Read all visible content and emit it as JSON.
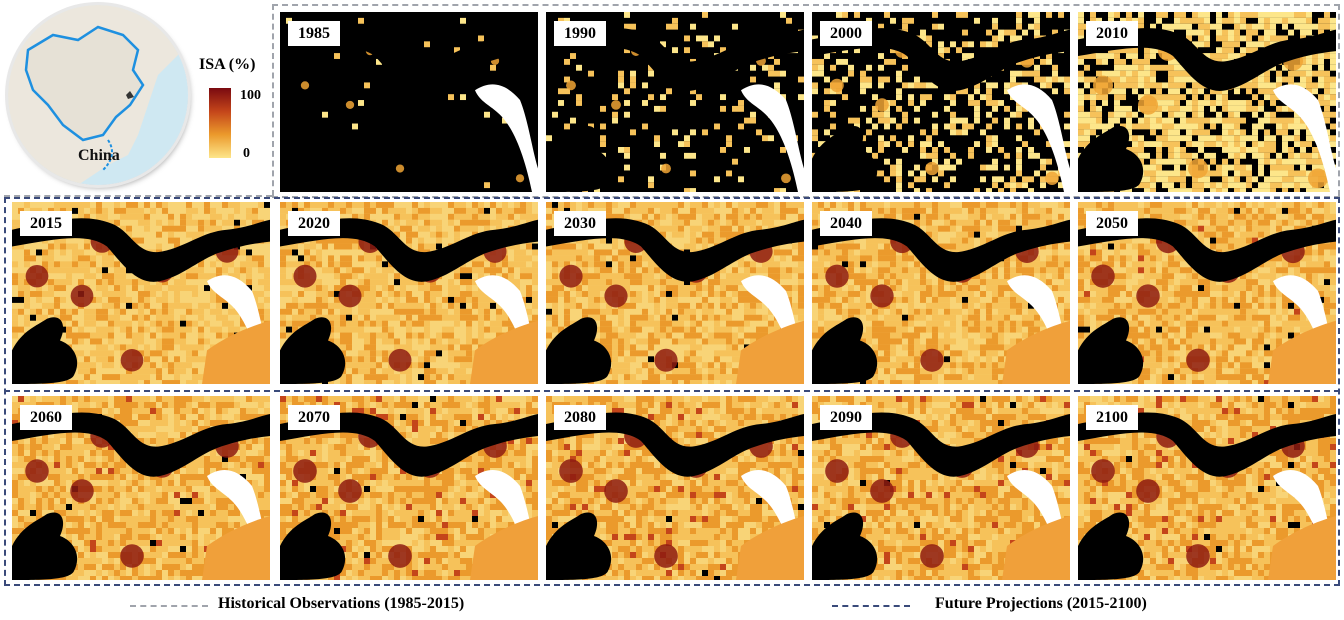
{
  "inset_map": {
    "label": "China"
  },
  "legend": {
    "title": "ISA (%)",
    "max_label": "100",
    "min_label": "0",
    "colors": [
      "#7a0a10",
      "#c4451a",
      "#eb9a2c",
      "#fde68a"
    ]
  },
  "panels": [
    {
      "year": "1985",
      "urban": 0.02
    },
    {
      "year": "1990",
      "urban": 0.12
    },
    {
      "year": "2000",
      "urban": 0.35
    },
    {
      "year": "2010",
      "urban": 0.75
    },
    {
      "year": "2015",
      "urban": 0.92
    },
    {
      "year": "2020",
      "urban": 0.94
    },
    {
      "year": "2030",
      "urban": 0.95
    },
    {
      "year": "2040",
      "urban": 0.96
    },
    {
      "year": "2050",
      "urban": 0.97
    },
    {
      "year": "2060",
      "urban": 0.97
    },
    {
      "year": "2070",
      "urban": 0.98
    },
    {
      "year": "2080",
      "urban": 0.98
    },
    {
      "year": "2090",
      "urban": 0.98
    },
    {
      "year": "2100",
      "urban": 0.98
    }
  ],
  "footer": {
    "historical": "Historical Observations (1985-2015)",
    "future": "Future Projections (2015-2100)",
    "historical_color": "#a0a4ac",
    "future_color": "#3a4a7a"
  }
}
